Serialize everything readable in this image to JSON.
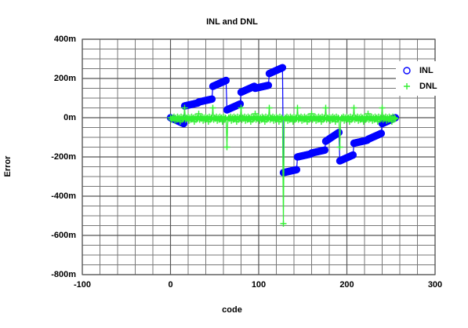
{
  "chart_data": {
    "type": "line",
    "title": "INL and DNL",
    "x_label": "code",
    "y_label": "Error",
    "x": [
      0,
      1,
      2,
      3,
      4,
      5,
      6,
      7,
      8,
      9,
      10,
      11,
      12,
      13,
      14,
      15,
      16,
      17,
      18,
      19,
      20,
      21,
      22,
      23,
      24,
      25,
      26,
      27,
      28,
      29,
      30,
      31,
      32,
      33,
      34,
      35,
      36,
      37,
      38,
      39,
      40,
      41,
      42,
      43,
      44,
      45,
      46,
      47,
      48,
      49,
      50,
      51,
      52,
      53,
      54,
      55,
      56,
      57,
      58,
      59,
      60,
      61,
      62,
      63,
      64,
      65,
      66,
      67,
      68,
      69,
      70,
      71,
      72,
      73,
      74,
      75,
      76,
      77,
      78,
      79,
      80,
      81,
      82,
      83,
      84,
      85,
      86,
      87,
      88,
      89,
      90,
      91,
      92,
      93,
      94,
      95,
      96,
      97,
      98,
      99,
      100,
      101,
      102,
      103,
      104,
      105,
      106,
      107,
      108,
      109,
      110,
      111,
      112,
      113,
      114,
      115,
      116,
      117,
      118,
      119,
      120,
      121,
      122,
      123,
      124,
      125,
      126,
      127,
      128,
      129,
      130,
      131,
      132,
      133,
      134,
      135,
      136,
      137,
      138,
      139,
      140,
      141,
      142,
      143,
      144,
      145,
      146,
      147,
      148,
      149,
      150,
      151,
      152,
      153,
      154,
      155,
      156,
      157,
      158,
      159,
      160,
      161,
      162,
      163,
      164,
      165,
      166,
      167,
      168,
      169,
      170,
      171,
      172,
      173,
      174,
      175,
      176,
      177,
      178,
      179,
      180,
      181,
      182,
      183,
      184,
      185,
      186,
      187,
      188,
      189,
      190,
      191,
      192,
      193,
      194,
      195,
      196,
      197,
      198,
      199,
      200,
      201,
      202,
      203,
      204,
      205,
      206,
      207,
      208,
      209,
      210,
      211,
      212,
      213,
      214,
      215,
      216,
      217,
      218,
      219,
      220,
      221,
      222,
      223,
      224,
      225,
      226,
      227,
      228,
      229,
      230,
      231,
      232,
      233,
      234,
      235,
      236,
      237,
      238,
      239,
      240,
      241,
      242,
      243,
      244,
      245,
      246,
      247,
      248,
      249,
      250,
      251,
      252,
      253,
      254,
      255
    ],
    "series": [
      {
        "name": "INL",
        "color": "#0000ff",
        "marker": "circle",
        "values": [
          0,
          -0.002,
          -0.004,
          -0.006,
          -0.008,
          -0.01,
          -0.012,
          -0.014,
          -0.016,
          -0.018,
          -0.02,
          -0.022,
          -0.024,
          -0.026,
          -0.028,
          -0.03,
          0.06,
          0.061,
          0.062,
          0.063,
          0.064,
          0.065,
          0.066,
          0.067,
          0.068,
          0.069,
          0.07,
          0.071,
          0.072,
          0.073,
          0.074,
          0.075,
          0.08,
          0.081,
          0.082,
          0.083,
          0.084,
          0.085,
          0.086,
          0.087,
          0.088,
          0.089,
          0.09,
          0.091,
          0.092,
          0.093,
          0.094,
          0.095,
          0.16,
          0.162,
          0.164,
          0.166,
          0.168,
          0.17,
          0.172,
          0.174,
          0.176,
          0.178,
          0.18,
          0.182,
          0.184,
          0.186,
          0.188,
          0.19,
          0.04,
          0.042,
          0.044,
          0.046,
          0.048,
          0.05,
          0.052,
          0.054,
          0.056,
          0.058,
          0.06,
          0.062,
          0.064,
          0.066,
          0.068,
          0.07,
          0.13,
          0.132,
          0.134,
          0.136,
          0.138,
          0.14,
          0.142,
          0.144,
          0.146,
          0.148,
          0.15,
          0.152,
          0.154,
          0.156,
          0.158,
          0.16,
          0.15,
          0.151,
          0.152,
          0.153,
          0.154,
          0.155,
          0.156,
          0.157,
          0.158,
          0.159,
          0.16,
          0.161,
          0.162,
          0.163,
          0.164,
          0.165,
          0.225,
          0.227,
          0.229,
          0.231,
          0.233,
          0.235,
          0.237,
          0.239,
          0.241,
          0.243,
          0.245,
          0.247,
          0.249,
          0.251,
          0.253,
          0.255,
          -0.28,
          -0.279,
          -0.278,
          -0.277,
          -0.276,
          -0.275,
          -0.274,
          -0.273,
          -0.272,
          -0.271,
          -0.27,
          -0.269,
          -0.268,
          -0.267,
          -0.266,
          -0.265,
          -0.2,
          -0.199,
          -0.198,
          -0.197,
          -0.196,
          -0.195,
          -0.194,
          -0.193,
          -0.192,
          -0.191,
          -0.19,
          -0.189,
          -0.188,
          -0.187,
          -0.186,
          -0.185,
          -0.18,
          -0.179,
          -0.178,
          -0.177,
          -0.176,
          -0.175,
          -0.174,
          -0.173,
          -0.172,
          -0.171,
          -0.17,
          -0.169,
          -0.168,
          -0.167,
          -0.166,
          -0.165,
          -0.12,
          -0.117,
          -0.114,
          -0.111,
          -0.108,
          -0.105,
          -0.102,
          -0.099,
          -0.096,
          -0.093,
          -0.09,
          -0.087,
          -0.084,
          -0.081,
          -0.078,
          -0.075,
          -0.22,
          -0.218,
          -0.216,
          -0.214,
          -0.212,
          -0.21,
          -0.208,
          -0.206,
          -0.204,
          -0.202,
          -0.2,
          -0.198,
          -0.196,
          -0.194,
          -0.192,
          -0.19,
          -0.13,
          -0.129,
          -0.128,
          -0.127,
          -0.126,
          -0.125,
          -0.124,
          -0.123,
          -0.122,
          -0.121,
          -0.12,
          -0.119,
          -0.118,
          -0.117,
          -0.116,
          -0.115,
          -0.11,
          -0.108,
          -0.106,
          -0.104,
          -0.102,
          -0.1,
          -0.098,
          -0.096,
          -0.094,
          -0.092,
          -0.09,
          -0.088,
          -0.086,
          -0.084,
          -0.082,
          -0.08,
          -0.03,
          -0.028,
          -0.026,
          -0.024,
          -0.022,
          -0.02,
          -0.018,
          -0.016,
          -0.014,
          -0.012,
          -0.01,
          -0.008,
          -0.006,
          -0.004,
          -0.002,
          0
        ]
      },
      {
        "name": "DNL",
        "color": "#33ee33",
        "marker": "plus",
        "values": [
          0,
          -0.01,
          0,
          -0.005,
          0.005,
          -0.015,
          0,
          -0.01,
          0.005,
          -0.005,
          0,
          -0.02,
          0.005,
          -0.01,
          0,
          -0.005,
          0.05,
          -0.01,
          0,
          -0.005,
          0.005,
          -0.015,
          0,
          -0.01,
          0.005,
          -0.005,
          0,
          -0.02,
          0.005,
          -0.01,
          0,
          -0.005,
          0.02,
          -0.01,
          0,
          -0.005,
          0.005,
          -0.015,
          0,
          -0.01,
          0.005,
          -0.005,
          0,
          -0.02,
          0.005,
          -0.01,
          0,
          -0.005,
          0.05,
          -0.01,
          0,
          -0.005,
          0.005,
          -0.015,
          0,
          -0.01,
          0.005,
          -0.005,
          0,
          -0.02,
          0.005,
          -0.01,
          0,
          -0.005,
          -0.15,
          -0.01,
          0,
          -0.005,
          0.005,
          -0.015,
          0,
          -0.01,
          0.005,
          -0.005,
          0,
          -0.02,
          0.005,
          -0.01,
          0,
          -0.005,
          0.05,
          -0.01,
          0,
          -0.005,
          0.005,
          -0.015,
          0,
          -0.01,
          0.005,
          -0.005,
          0,
          -0.02,
          0.005,
          -0.01,
          0,
          -0.005,
          0.02,
          -0.01,
          0,
          -0.005,
          0.005,
          -0.015,
          0,
          -0.01,
          0.005,
          -0.005,
          0,
          -0.02,
          0.005,
          -0.01,
          0,
          -0.005,
          0.05,
          -0.01,
          0,
          -0.005,
          0.005,
          -0.015,
          0,
          -0.01,
          0.005,
          -0.005,
          0,
          -0.02,
          0.005,
          -0.01,
          0,
          -0.005,
          -0.54,
          -0.01,
          0,
          -0.005,
          0.005,
          -0.015,
          0,
          -0.01,
          0.005,
          -0.005,
          0,
          -0.02,
          0.005,
          -0.01,
          0,
          -0.005,
          0.05,
          -0.01,
          0,
          -0.005,
          0.005,
          -0.015,
          0,
          -0.01,
          0.005,
          -0.005,
          0,
          -0.02,
          0.005,
          -0.01,
          0,
          -0.005,
          0.02,
          -0.01,
          0,
          -0.005,
          0.005,
          -0.015,
          0,
          -0.01,
          0.005,
          -0.005,
          0,
          -0.02,
          0.005,
          -0.01,
          0,
          -0.005,
          0.05,
          -0.01,
          0,
          -0.005,
          0.005,
          -0.015,
          0,
          -0.01,
          0.005,
          -0.005,
          0,
          -0.02,
          0.005,
          -0.01,
          0,
          -0.005,
          -0.15,
          -0.01,
          0,
          -0.005,
          0.005,
          -0.015,
          0,
          -0.01,
          0.005,
          -0.005,
          0,
          -0.02,
          0.005,
          -0.01,
          0,
          -0.005,
          0.05,
          -0.01,
          0,
          -0.005,
          0.005,
          -0.015,
          0,
          -0.01,
          0.005,
          -0.005,
          0,
          -0.02,
          0.005,
          -0.01,
          0,
          -0.005,
          0.02,
          -0.01,
          0,
          -0.005,
          0.005,
          -0.015,
          0,
          -0.01,
          0.005,
          -0.005,
          0,
          -0.02,
          0.005,
          -0.01,
          0,
          -0.005,
          0.05,
          -0.01,
          0,
          -0.005,
          0.005,
          -0.015,
          0,
          -0.01,
          0.005,
          -0.005,
          0,
          -0.02,
          0.005,
          -0.01,
          0,
          -0.005
        ]
      }
    ],
    "xlim": [
      -100,
      300
    ],
    "xticks": [
      -100,
      0,
      100,
      200,
      300
    ],
    "ylim": [
      -0.8,
      0.4
    ],
    "yticks": [
      {
        "value": -0.8,
        "label": "-800m"
      },
      {
        "value": -0.6,
        "label": "-600m"
      },
      {
        "value": -0.4,
        "label": "-400m"
      },
      {
        "value": -0.2,
        "label": "-200m"
      },
      {
        "value": 0,
        "label": "0m"
      },
      {
        "value": 0.2,
        "label": "200m"
      },
      {
        "value": 0.4,
        "label": "400m"
      }
    ],
    "grid": true,
    "minor_grid": true,
    "legend": "upper right"
  }
}
